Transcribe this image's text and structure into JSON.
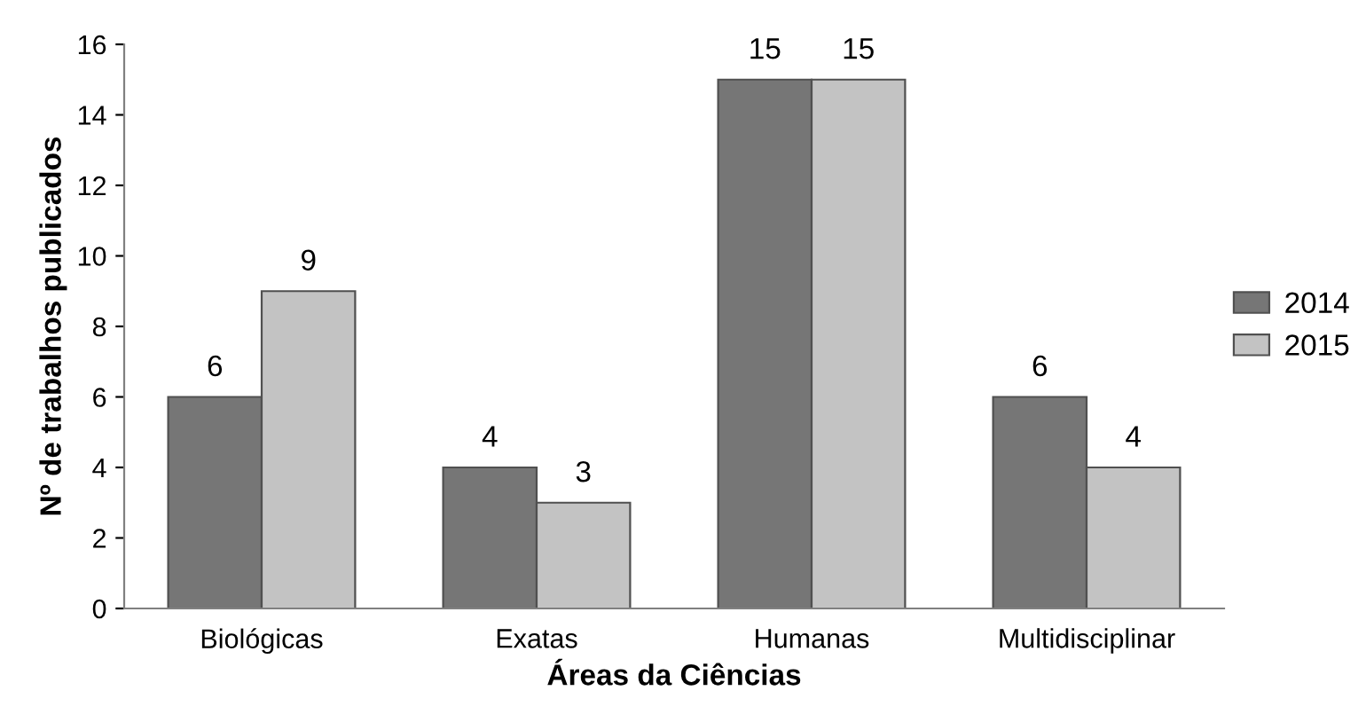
{
  "chart_data": {
    "type": "bar",
    "xlabel": "Áreas da Ciências",
    "ylabel": "Nº de trabalhos publicados",
    "categories": [
      "Biológicas",
      "Exatas",
      "Humanas",
      "Multidisciplinar"
    ],
    "series": [
      {
        "name": "2014",
        "color": "#767676",
        "values": [
          6,
          4,
          15,
          6
        ]
      },
      {
        "name": "2015",
        "color": "#c3c3c3",
        "values": [
          9,
          3,
          15,
          4
        ]
      }
    ],
    "ylim": [
      0,
      16
    ],
    "yticks": [
      0,
      2,
      4,
      6,
      8,
      10,
      12,
      14,
      16
    ],
    "grid": false,
    "legend": "right",
    "data_labels": true
  }
}
